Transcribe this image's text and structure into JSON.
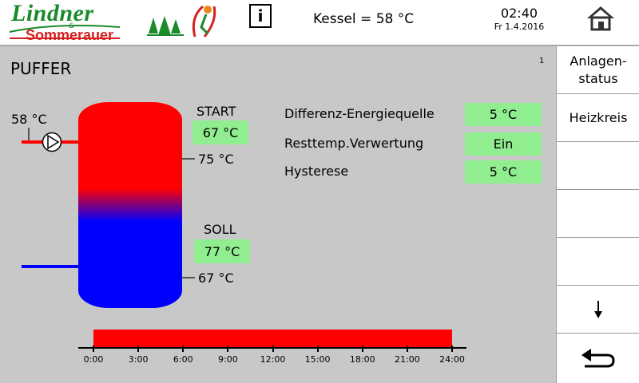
{
  "header": {
    "logo_line1": "Lindner",
    "logo_amp": "&",
    "logo_line2": "Sommerauer",
    "info_icon": "info-icon",
    "kessel": "Kessel = 58 °C",
    "time": "02:40",
    "date": "Fr 1.4.2016",
    "home_icon": "home-icon"
  },
  "page": {
    "title": "PUFFER",
    "page_number": "1"
  },
  "tank": {
    "inlet_temp": "58 °C",
    "start_label": "START",
    "start_value": "67 °C",
    "top_temp": "75 °C",
    "soll_label": "SOLL",
    "soll_value": "77 °C",
    "bottom_temp": "67 °C"
  },
  "params": [
    {
      "label": "Differenz-Energiequelle",
      "value": "5 °C"
    },
    {
      "label": "Resttemp.Verwertung",
      "value": "Ein"
    },
    {
      "label": "Hysterese",
      "value": "5 °C"
    }
  ],
  "timeline": {
    "ticks": [
      "0:00",
      "3:00",
      "6:00",
      "9:00",
      "12:00",
      "15:00",
      "18:00",
      "21:00",
      "24:00"
    ],
    "active_from": "0:00",
    "active_to": "24:00"
  },
  "sidebar": {
    "items": [
      "Anlagen-\nstatus",
      "Heizkreis",
      "",
      "",
      "",
      "↓",
      "⮌"
    ],
    "down_icon": "arrow-down-icon",
    "back_icon": "back-arrow-icon"
  },
  "colors": {
    "hot": "#ff0000",
    "cold": "#0000ff",
    "value_bg": "#90ee90",
    "logo_green": "#1a8a2a",
    "logo_red": "#d62020"
  }
}
